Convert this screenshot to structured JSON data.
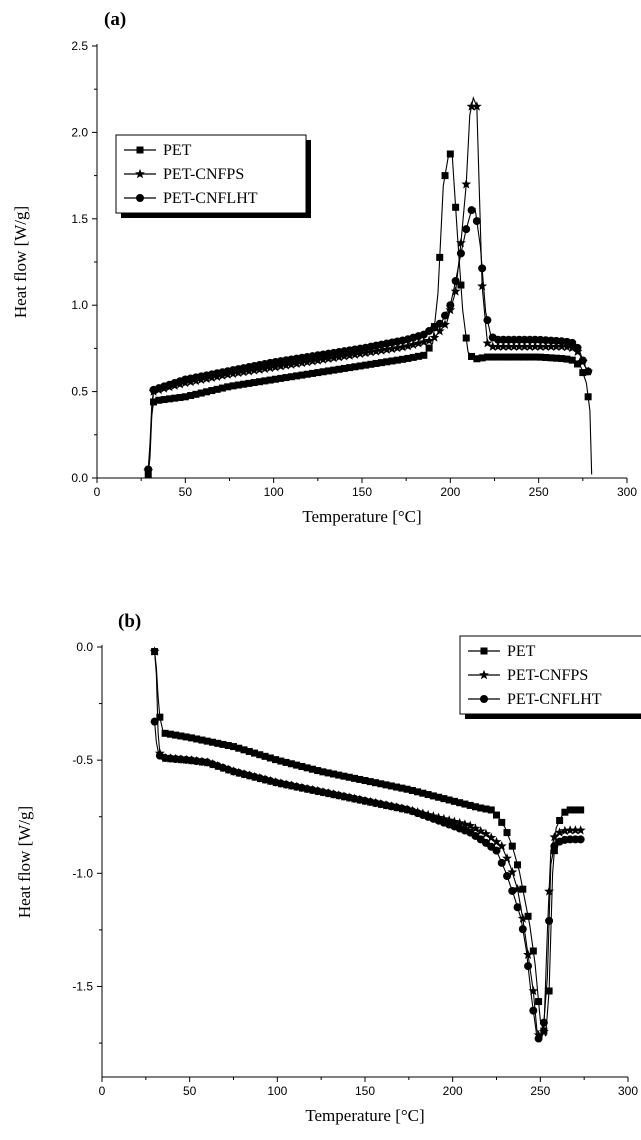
{
  "chart_data": [
    {
      "type": "line",
      "panel_label": "(a)",
      "xlabel": "Temperature [°C]",
      "ylabel": "Heat flow [W/g]",
      "xlim": [
        0,
        300
      ],
      "ylim": [
        0,
        2.5
      ],
      "xticks": [
        0,
        50,
        100,
        150,
        200,
        250,
        300
      ],
      "yticks": [
        "0.0",
        "0.5",
        "1.0",
        "1.5",
        "2.0",
        "2.5"
      ],
      "ytick_values": [
        0,
        0.5,
        1.0,
        1.5,
        2.0,
        2.5
      ],
      "legend": "upper-left",
      "series": [
        {
          "name": "PET",
          "marker": "square",
          "x": [
            29,
            30,
            31,
            32,
            35,
            50,
            75,
            100,
            125,
            150,
            175,
            185,
            190,
            193,
            196,
            199,
            201,
            204,
            207,
            210,
            213,
            216,
            220,
            230,
            250,
            265,
            270,
            274,
            277,
            279,
            280
          ],
          "y": [
            0.02,
            0.12,
            0.36,
            0.44,
            0.45,
            0.47,
            0.53,
            0.57,
            0.61,
            0.65,
            0.69,
            0.71,
            0.78,
            1.07,
            1.69,
            1.87,
            1.88,
            1.41,
            0.97,
            0.73,
            0.69,
            0.69,
            0.7,
            0.7,
            0.7,
            0.69,
            0.68,
            0.64,
            0.55,
            0.39,
            0.02
          ]
        },
        {
          "name": "PET-CNFPS",
          "marker": "star",
          "x": [
            29,
            30,
            31,
            32,
            35,
            50,
            75,
            100,
            125,
            150,
            175,
            190,
            198,
            203,
            206,
            209,
            211,
            213,
            215,
            218,
            221,
            224,
            230,
            250,
            265,
            270,
            273,
            276,
            279
          ],
          "y": [
            0.04,
            0.16,
            0.38,
            0.5,
            0.51,
            0.55,
            0.6,
            0.64,
            0.68,
            0.72,
            0.76,
            0.8,
            0.9,
            1.08,
            1.36,
            1.7,
            2.1,
            2.2,
            2.15,
            1.11,
            0.78,
            0.76,
            0.76,
            0.76,
            0.76,
            0.75,
            0.72,
            0.65,
            0.6
          ]
        },
        {
          "name": "PET-CNFLHT",
          "marker": "circle",
          "x": [
            29,
            30,
            31,
            32,
            35,
            50,
            75,
            100,
            125,
            150,
            175,
            185,
            195,
            200,
            203,
            206,
            209,
            212,
            214,
            217,
            220,
            223,
            226,
            230,
            250,
            265,
            270,
            273,
            276,
            279
          ],
          "y": [
            0.05,
            0.2,
            0.42,
            0.51,
            0.52,
            0.57,
            0.62,
            0.67,
            0.71,
            0.75,
            0.8,
            0.83,
            0.9,
            1.0,
            1.14,
            1.3,
            1.44,
            1.55,
            1.56,
            1.34,
            0.96,
            0.82,
            0.8,
            0.8,
            0.8,
            0.79,
            0.78,
            0.74,
            0.65,
            0.6
          ]
        }
      ]
    },
    {
      "type": "line",
      "panel_label": "(b)",
      "xlabel": "Temperature [°C]",
      "ylabel": "Heat flow [W/g]",
      "xlim": [
        0,
        300
      ],
      "ylim": [
        -1.9,
        0
      ],
      "xticks": [
        0,
        50,
        100,
        150,
        200,
        250,
        300
      ],
      "yticks": [
        "0.0",
        "-0.5",
        "-1.0",
        "-1.5"
      ],
      "ytick_values": [
        0,
        -0.5,
        -1.0,
        -1.5
      ],
      "legend": "upper-right",
      "series": [
        {
          "name": "PET",
          "marker": "square",
          "x": [
            30,
            31,
            32,
            33,
            35,
            50,
            75,
            100,
            125,
            150,
            175,
            200,
            215,
            222,
            226,
            230,
            234,
            238,
            241,
            244,
            247,
            250,
            253,
            255,
            257,
            259,
            262,
            265,
            270,
            274
          ],
          "y": [
            -0.02,
            -0.09,
            -0.22,
            -0.31,
            -0.38,
            -0.4,
            -0.44,
            -0.5,
            -0.55,
            -0.59,
            -0.63,
            -0.68,
            -0.71,
            -0.72,
            -0.75,
            -0.8,
            -0.88,
            -0.99,
            -1.11,
            -1.23,
            -1.4,
            -1.65,
            -1.72,
            -1.52,
            -1.0,
            -0.8,
            -0.75,
            -0.72,
            -0.72,
            -0.72
          ]
        },
        {
          "name": "PET-CNFPS",
          "marker": "star",
          "x": [
            30,
            31,
            32,
            33,
            35,
            50,
            60,
            75,
            100,
            125,
            150,
            175,
            200,
            210,
            220,
            228,
            233,
            237,
            240,
            243,
            246,
            248,
            250,
            252,
            254,
            256,
            258,
            261,
            265,
            270,
            274
          ],
          "y": [
            -0.02,
            -0.12,
            -0.38,
            -0.47,
            -0.49,
            -0.5,
            -0.51,
            -0.55,
            -0.6,
            -0.64,
            -0.68,
            -0.72,
            -0.77,
            -0.79,
            -0.83,
            -0.88,
            -0.97,
            -1.07,
            -1.2,
            -1.36,
            -1.52,
            -1.69,
            -1.74,
            -1.7,
            -1.26,
            -0.9,
            -0.84,
            -0.82,
            -0.81,
            -0.81,
            -0.81
          ]
        },
        {
          "name": "PET-CNFLHT",
          "marker": "circle",
          "x": [
            30,
            31,
            32,
            33,
            35,
            50,
            60,
            75,
            100,
            125,
            150,
            175,
            200,
            210,
            218,
            225,
            230,
            235,
            239,
            242,
            245,
            248,
            250,
            252,
            254,
            256,
            258,
            261,
            265,
            270,
            274
          ],
          "y": [
            -0.33,
            -0.42,
            -0.46,
            -0.48,
            -0.49,
            -0.5,
            -0.51,
            -0.55,
            -0.6,
            -0.64,
            -0.68,
            -0.72,
            -0.79,
            -0.82,
            -0.86,
            -0.9,
            -0.99,
            -1.1,
            -1.2,
            -1.34,
            -1.55,
            -1.72,
            -1.74,
            -1.66,
            -1.46,
            -0.96,
            -0.88,
            -0.86,
            -0.85,
            -0.85,
            -0.85
          ]
        }
      ]
    }
  ]
}
